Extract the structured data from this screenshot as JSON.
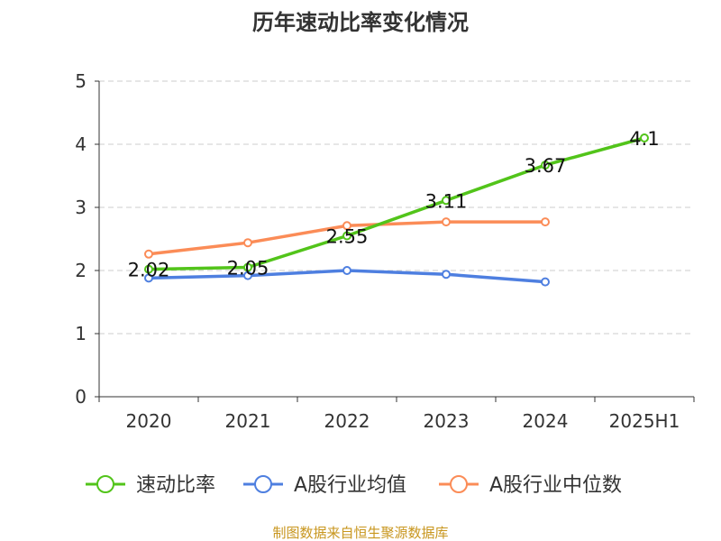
{
  "chart_data": {
    "type": "line",
    "title": "历年速动比率变化情况",
    "categories": [
      "2020",
      "2021",
      "2022",
      "2023",
      "2024",
      "2025H1"
    ],
    "ylim": [
      0,
      5
    ],
    "yticks": [
      0,
      1,
      2,
      3,
      4,
      5
    ],
    "grid": true,
    "legend_position": "bottom",
    "series": [
      {
        "name": "速动比率",
        "color": "#52c41a",
        "values": [
          2.02,
          2.05,
          2.55,
          3.11,
          3.67,
          4.1
        ],
        "labels": [
          "2.02",
          "2.05",
          "2.55",
          "3.11",
          "3.67",
          "4.1"
        ]
      },
      {
        "name": "A股行业均值",
        "color": "#4e7fe0",
        "values": [
          1.88,
          1.92,
          2.0,
          1.94,
          1.82,
          null
        ]
      },
      {
        "name": "A股行业中位数",
        "color": "#fb8c57",
        "values": [
          2.26,
          2.44,
          2.71,
          2.77,
          2.77,
          null
        ]
      }
    ]
  },
  "source": "制图数据来自恒生聚源数据库"
}
